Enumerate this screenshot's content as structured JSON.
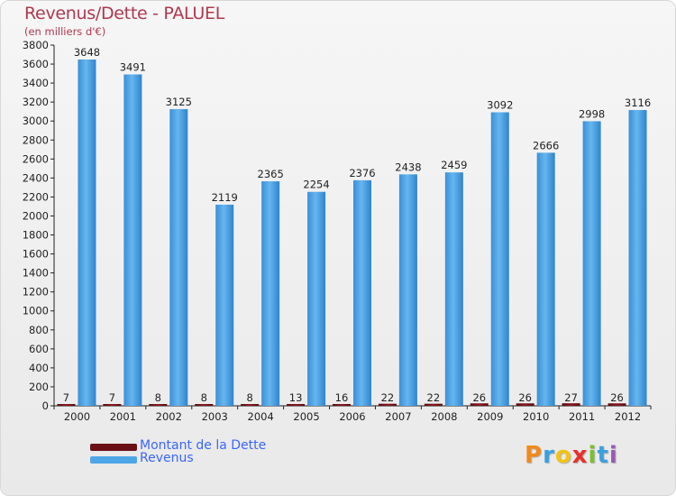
{
  "header": {
    "title": "Revenus/Dette - PALUEL",
    "subtitle": "(en milliers d'€)"
  },
  "chart_data": {
    "type": "bar",
    "title": "Revenus/Dette - PALUEL",
    "ylabel": "(en milliers d'€)",
    "xlabel": "",
    "ylim": [
      0,
      3800
    ],
    "y_ticks": [
      0,
      200,
      400,
      600,
      800,
      1000,
      1200,
      1400,
      1600,
      1800,
      2000,
      2200,
      2400,
      2600,
      2800,
      3000,
      3200,
      3400,
      3600,
      3800
    ],
    "grid": false,
    "categories": [
      "2000",
      "2001",
      "2002",
      "2003",
      "2004",
      "2005",
      "2006",
      "2007",
      "2008",
      "2009",
      "2010",
      "2011",
      "2012"
    ],
    "series": [
      {
        "name": "Montant de la Dette",
        "color": "#6b0f16",
        "values": [
          7,
          7,
          8,
          8,
          8,
          13,
          16,
          22,
          22,
          26,
          26,
          27,
          26
        ]
      },
      {
        "name": "Revenus",
        "color": "#4fa6e6",
        "values": [
          3648,
          3491,
          3125,
          2119,
          2365,
          2254,
          2376,
          2438,
          2459,
          3092,
          2666,
          2998,
          3116
        ]
      }
    ],
    "legend_position": "bottom-left"
  },
  "legend": {
    "items": [
      {
        "label": "Montant de la Dette",
        "color": "#6b0f16"
      },
      {
        "label": "Revenus",
        "color": "#4fa6e6"
      }
    ]
  },
  "logo": {
    "letters": [
      "P",
      "r",
      "o",
      "x",
      "i",
      "t",
      "i"
    ],
    "colors": [
      "#f08a1c",
      "#3aa0e0",
      "#f2c314",
      "#e8302a",
      "#7bbf2a",
      "#3aa0e0",
      "#9b59b6"
    ]
  }
}
